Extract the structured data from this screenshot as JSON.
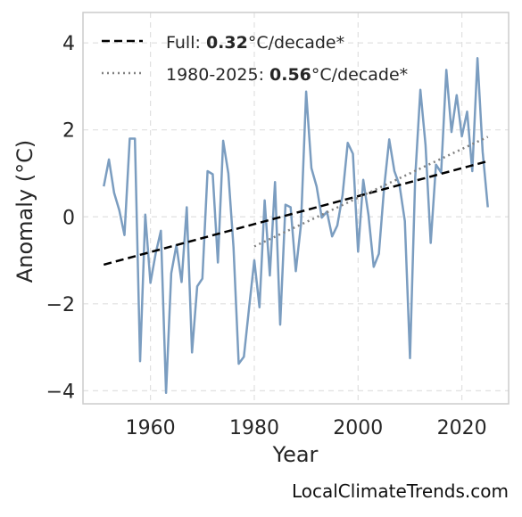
{
  "chart_data": {
    "type": "line",
    "xlabel": "Year",
    "ylabel": "Anomaly (°C)",
    "xlim": [
      1947,
      2029
    ],
    "ylim": [
      -4.3,
      4.7
    ],
    "xticks": [
      1960,
      1980,
      2000,
      2020
    ],
    "yticks": [
      -4,
      -2,
      0,
      2,
      4
    ],
    "ytick_labels": [
      "−4",
      "−2",
      "0",
      "2",
      "4"
    ],
    "grid": true,
    "legend_position": "top-left",
    "colors": {
      "series": "#7b9dc0",
      "full_trend": "#000000",
      "recent_trend": "#808080",
      "grid": "#e0e0e0",
      "frame": "#cccccc"
    },
    "series": [
      {
        "x": [
          1951,
          1952,
          1953,
          1954,
          1955,
          1956,
          1957,
          1958,
          1959,
          1960,
          1961,
          1962,
          1963,
          1964,
          1965,
          1966,
          1967,
          1968,
          1969,
          1970,
          1971,
          1972,
          1973,
          1974,
          1975,
          1976,
          1977,
          1978,
          1979,
          1980,
          1981,
          1982,
          1983,
          1984,
          1985,
          1986,
          1987,
          1988,
          1989,
          1990,
          1991,
          1992,
          1993,
          1994,
          1995,
          1996,
          1997,
          1998,
          1999,
          2000,
          2001,
          2002,
          2003,
          2004,
          2005,
          2006,
          2007,
          2008,
          2009,
          2010,
          2011,
          2012,
          2013,
          2014,
          2015,
          2016,
          2017,
          2018,
          2019,
          2020,
          2021,
          2022,
          2023,
          2024,
          2025
        ],
        "values": [
          0.7,
          1.32,
          0.55,
          0.15,
          -0.42,
          1.8,
          1.8,
          -3.32,
          0.05,
          -1.52,
          -0.85,
          -0.32,
          -4.05,
          -1.3,
          -0.65,
          -1.5,
          0.22,
          -3.12,
          -1.6,
          -1.42,
          1.05,
          0.98,
          -1.05,
          1.75,
          1.0,
          -0.7,
          -3.38,
          -3.22,
          -2.1,
          -1.0,
          -2.08,
          0.38,
          -1.35,
          0.8,
          -2.48,
          0.28,
          0.22,
          -1.25,
          -0.18,
          2.88,
          1.12,
          0.7,
          -0.02,
          0.12,
          -0.45,
          -0.2,
          0.5,
          1.7,
          1.45,
          -0.8,
          0.85,
          0.05,
          -1.15,
          -0.85,
          0.65,
          1.78,
          1.05,
          0.72,
          -0.1,
          -3.25,
          0.9,
          2.92,
          1.65,
          -0.6,
          1.2,
          1.02,
          3.38,
          1.95,
          2.8,
          1.85,
          2.42,
          1.05,
          3.65,
          1.5,
          0.22
        ]
      }
    ],
    "trends": [
      {
        "style": "dashed",
        "x": [
          1951,
          2025
        ],
        "y": [
          -1.1,
          1.28
        ]
      },
      {
        "style": "dotted",
        "x": [
          1980,
          2025
        ],
        "y": [
          -0.68,
          1.84
        ]
      }
    ],
    "legend": [
      {
        "prefix": "Full: ",
        "value": "0.32",
        "suffix": "°C/decade*"
      },
      {
        "prefix": "1980-2025: ",
        "value": "0.56",
        "suffix": "°C/decade*"
      }
    ]
  },
  "watermark": "LocalClimateTrends.com"
}
